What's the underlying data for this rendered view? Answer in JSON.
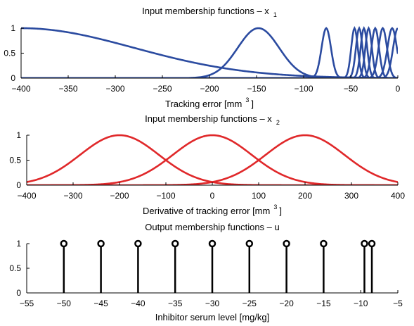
{
  "chart_data": [
    {
      "type": "line",
      "title": "Input membership functions – x",
      "title_sub": "1",
      "xlabel": "Tracking error [mm",
      "xlabel_sup": "3",
      "xlabel_tail": "]",
      "ylabel": "",
      "xlim": [
        -400,
        0
      ],
      "ylim": [
        0,
        1
      ],
      "xticks": [
        -400,
        -350,
        -300,
        -250,
        -200,
        -150,
        -100,
        -50,
        0
      ],
      "yticks": [
        0,
        0.5,
        1
      ],
      "grid": false,
      "color": "#2b4ba0",
      "series": [
        {
          "shape": "gauss",
          "center": -400,
          "sigma": 120
        },
        {
          "shape": "gauss",
          "center": -148,
          "sigma": 22
        },
        {
          "shape": "gauss",
          "center": -76,
          "sigma": 5
        },
        {
          "shape": "gauss",
          "center": -46,
          "sigma": 3.5
        },
        {
          "shape": "gauss",
          "center": -41,
          "sigma": 3.5
        },
        {
          "shape": "gauss",
          "center": -36,
          "sigma": 3.5
        },
        {
          "shape": "gauss",
          "center": -31,
          "sigma": 3.5
        },
        {
          "shape": "gauss",
          "center": -24,
          "sigma": 4
        },
        {
          "shape": "gauss",
          "center": -16,
          "sigma": 4.5
        },
        {
          "shape": "gauss",
          "center": -6,
          "sigma": 5
        },
        {
          "shape": "gauss",
          "center": 0,
          "sigma": 5
        }
      ]
    },
    {
      "type": "line",
      "title": "Input membership functions – x",
      "title_sub": "2",
      "xlabel": "Derivative of tracking error [mm",
      "xlabel_sup": "3",
      "xlabel_tail": "]",
      "ylabel": "",
      "xlim": [
        -400,
        400
      ],
      "ylim": [
        0,
        1
      ],
      "xticks": [
        -400,
        -300,
        -200,
        -100,
        0,
        100,
        200,
        300,
        400
      ],
      "yticks": [
        0,
        0.5,
        1
      ],
      "grid": false,
      "color": "#e0282a",
      "series": [
        {
          "shape": "gauss",
          "center": -200,
          "sigma": 85
        },
        {
          "shape": "gauss",
          "center": 0,
          "sigma": 85
        },
        {
          "shape": "gauss",
          "center": 200,
          "sigma": 85
        }
      ]
    },
    {
      "type": "stem",
      "title": "Output membership functions – u",
      "xlabel": "Inhibitor serum level [mg/kg]",
      "ylabel": "",
      "xlim": [
        -55,
        -5
      ],
      "ylim": [
        0,
        1
      ],
      "xticks": [
        -55,
        -50,
        -45,
        -40,
        -35,
        -30,
        -25,
        -20,
        -15,
        -10,
        -5
      ],
      "yticks": [
        0,
        0.5,
        1
      ],
      "grid": false,
      "color": "#000000",
      "x": [
        -50,
        -45,
        -40,
        -35,
        -30,
        -25,
        -20,
        -15,
        -9.5,
        -8.5
      ],
      "values": [
        1,
        1,
        1,
        1,
        1,
        1,
        1,
        1,
        1,
        1
      ]
    }
  ]
}
